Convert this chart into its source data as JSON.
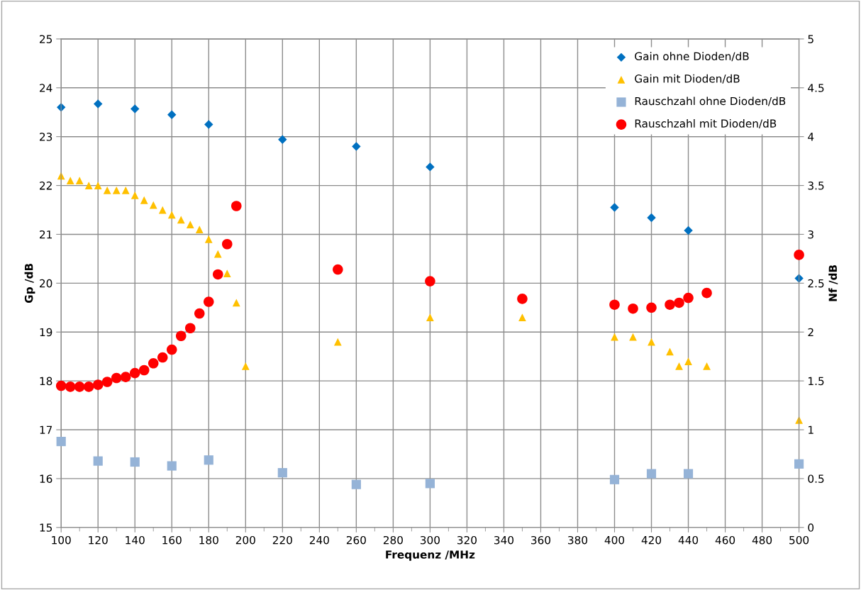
{
  "chart_data": {
    "type": "scatter",
    "xlabel": "Frequenz /MHz",
    "ylabel": "Gp /dB",
    "y2label": "Nf /dB",
    "xlim": [
      100,
      500
    ],
    "xticks": [
      100,
      {
        "value": 110,
        "label": null
      },
      120,
      {
        "value": 130,
        "label": null
      },
      140,
      {
        "value": 150,
        "label": null
      },
      160,
      {
        "value": 170,
        "label": null
      },
      180,
      {
        "value": 190,
        "label": null
      },
      200,
      {
        "value": 210,
        "label": null
      },
      220,
      {
        "value": 230,
        "label": null
      },
      240,
      {
        "value": 250,
        "label": null
      },
      260,
      {
        "value": 270,
        "label": null
      },
      280,
      {
        "value": 290,
        "label": null
      },
      300,
      {
        "value": 310,
        "label": null
      },
      320,
      {
        "value": 330,
        "label": null
      },
      340,
      {
        "value": 350,
        "label": null
      },
      360,
      {
        "value": 370,
        "label": null
      },
      380,
      {
        "value": 390,
        "label": null
      },
      400,
      {
        "value": 410,
        "label": null
      },
      420,
      {
        "value": 430,
        "label": null
      },
      440,
      {
        "value": 450,
        "label": null
      },
      460,
      {
        "value": 470,
        "label": null
      },
      480,
      {
        "value": 490,
        "label": null
      },
      500
    ],
    "ylim": [
      15,
      25
    ],
    "yticks": [
      15,
      16,
      17,
      18,
      19,
      20,
      21,
      22,
      23,
      24,
      25
    ],
    "y2lim": [
      0,
      5
    ],
    "y2ticks": [
      0,
      0.5,
      1,
      1.5,
      2,
      2.5,
      3,
      3.5,
      4,
      4.5,
      5
    ],
    "grid": true,
    "legend": "top right",
    "series": [
      {
        "name": "Gain ohne Dioden/dB",
        "color": "#0070c0",
        "marker": "diamond",
        "x": [
          100,
          120,
          140,
          160,
          180,
          220,
          260,
          300,
          400,
          420,
          440,
          500
        ],
        "values": [
          23.6,
          23.67,
          23.57,
          23.45,
          23.25,
          22.94,
          22.8,
          22.38,
          21.55,
          21.34,
          21.08,
          20.1
        ]
      },
      {
        "name": "Gain mit Dioden/dB",
        "color": "#ffc000",
        "marker": "triangle",
        "x": [
          100,
          105,
          110,
          115,
          120,
          125,
          130,
          135,
          140,
          145,
          150,
          155,
          160,
          165,
          170,
          175,
          180,
          185,
          190,
          195,
          200,
          250,
          300,
          350,
          400,
          410,
          420,
          430,
          435,
          440,
          450,
          500
        ],
        "values": [
          22.2,
          22.1,
          22.1,
          22.0,
          22.0,
          21.9,
          21.9,
          21.9,
          21.8,
          21.7,
          21.6,
          21.5,
          21.4,
          21.3,
          21.2,
          21.1,
          20.9,
          20.6,
          20.2,
          19.6,
          18.3,
          18.8,
          19.3,
          19.3,
          18.9,
          18.9,
          18.8,
          18.6,
          18.3,
          18.4,
          18.3,
          17.2
        ]
      },
      {
        "name": "Rauschzahl ohne Dioden/dB",
        "color": "#95b3d7",
        "marker": "square",
        "axis": "y2",
        "x": [
          100,
          120,
          140,
          160,
          180,
          220,
          260,
          300,
          400,
          420,
          440,
          500
        ],
        "values": [
          0.88,
          0.68,
          0.67,
          0.63,
          0.69,
          0.56,
          0.44,
          0.45,
          0.49,
          0.55,
          0.55,
          0.65
        ]
      },
      {
        "name": "Rauschzahl mit Dioden/dB",
        "color": "#ff0000",
        "marker": "circle",
        "axis": "y2",
        "x": [
          100,
          105,
          110,
          115,
          120,
          125,
          130,
          135,
          140,
          145,
          150,
          155,
          160,
          165,
          170,
          175,
          180,
          185,
          190,
          195,
          250,
          300,
          350,
          400,
          410,
          420,
          430,
          435,
          440,
          450,
          500
        ],
        "values": [
          1.45,
          1.44,
          1.44,
          1.44,
          1.46,
          1.49,
          1.53,
          1.54,
          1.58,
          1.61,
          1.68,
          1.74,
          1.82,
          1.96,
          2.04,
          2.19,
          2.31,
          2.59,
          2.9,
          3.29,
          2.64,
          2.52,
          2.34,
          2.28,
          2.24,
          2.25,
          2.28,
          2.3,
          2.35,
          2.4,
          2.79
        ]
      }
    ]
  }
}
